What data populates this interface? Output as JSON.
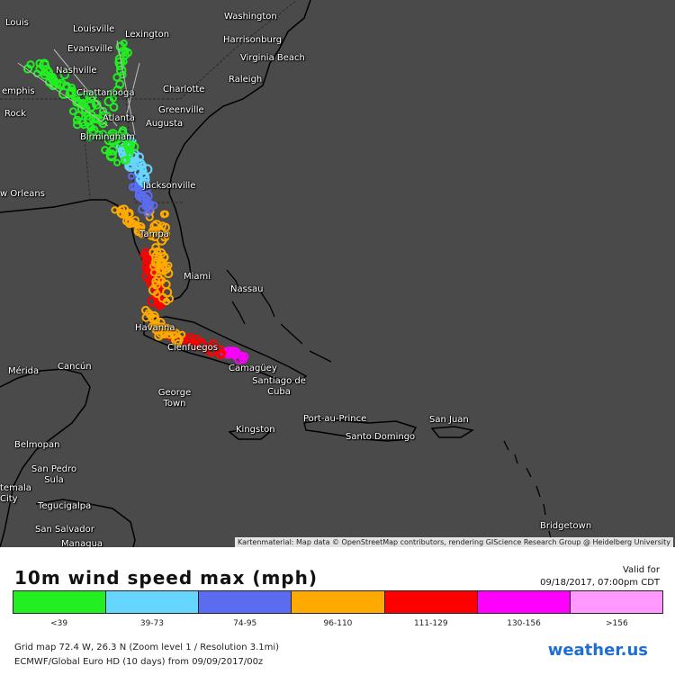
{
  "map": {
    "cities": [
      {
        "name": "Louis",
        "id": "louis"
      },
      {
        "name": "Louisville",
        "id": "louisville"
      },
      {
        "name": "Lexington",
        "id": "lexington"
      },
      {
        "name": "Washington",
        "id": "washington"
      },
      {
        "name": "Harrisonburg",
        "id": "harrisonburg"
      },
      {
        "name": "Evansville",
        "id": "evansville"
      },
      {
        "name": "Virginia Beach",
        "id": "virginia-beach"
      },
      {
        "name": "Nashville",
        "id": "nashville"
      },
      {
        "name": "Raleigh",
        "id": "raleigh"
      },
      {
        "name": "emphis",
        "id": "memphis"
      },
      {
        "name": "Chattanooga",
        "id": "chattanooga"
      },
      {
        "name": "Charlotte",
        "id": "charlotte"
      },
      {
        "name": "Rock",
        "id": "little-rock"
      },
      {
        "name": "Greenville",
        "id": "greenville"
      },
      {
        "name": "Atlanta",
        "id": "atlanta"
      },
      {
        "name": "Augusta",
        "id": "augusta"
      },
      {
        "name": "Birmingham",
        "id": "birmingham"
      },
      {
        "name": "Jacksonville",
        "id": "jacksonville"
      },
      {
        "name": "w Orleans",
        "id": "new-orleans"
      },
      {
        "name": "Tampa",
        "id": "tampa"
      },
      {
        "name": "Miami",
        "id": "miami"
      },
      {
        "name": "Nassau",
        "id": "nassau"
      },
      {
        "name": "Havanna",
        "id": "havana"
      },
      {
        "name": "Cienfuegos",
        "id": "cienfuegos"
      },
      {
        "name": "Camagüey",
        "id": "camaguey"
      },
      {
        "name": "Mérida",
        "id": "merida"
      },
      {
        "name": "Cancún",
        "id": "cancun"
      },
      {
        "name": "George Town",
        "id": "george-town"
      },
      {
        "name": "Santiago de Cuba",
        "id": "santiago-de-cuba"
      },
      {
        "name": "Port-au-Prince",
        "id": "port-au-prince"
      },
      {
        "name": "San Juan",
        "id": "san-juan"
      },
      {
        "name": "Kingston",
        "id": "kingston"
      },
      {
        "name": "Santo Domingo",
        "id": "santo-domingo"
      },
      {
        "name": "Belmopan",
        "id": "belmopan"
      },
      {
        "name": "San Pedro Sula",
        "id": "san-pedro-sula"
      },
      {
        "name": "temala City",
        "id": "guatemala-city"
      },
      {
        "name": "Tegucigalpa",
        "id": "tegucigalpa"
      },
      {
        "name": "San Salvador",
        "id": "san-salvador"
      },
      {
        "name": "Managua",
        "id": "managua"
      },
      {
        "name": "Bridgetown",
        "id": "bridgetown"
      }
    ],
    "attribution": "Kartenmaterial: Map data © OpenStreetMap contributors, rendering GIScience Research Group @ Heidelberg University"
  },
  "footer": {
    "title": "10m wind speed max (mph)",
    "valid_label": "Valid for",
    "valid_date": "09/18/2017, 07:00pm CDT",
    "legend": [
      {
        "label": "<39",
        "color": "#22ee22"
      },
      {
        "label": "39-73",
        "color": "#66d6ff"
      },
      {
        "label": "74-95",
        "color": "#5b6cf0"
      },
      {
        "label": "96-110",
        "color": "#ffaa00"
      },
      {
        "label": "111-129",
        "color": "#ff0000"
      },
      {
        "label": "130-156",
        "color": "#ff00ff"
      },
      {
        "label": ">156",
        "color": "#ff99ff"
      }
    ],
    "grid_info": "Grid map 72.4 W, 26.3 N (Zoom level 1 / Resolution 3.1mi)",
    "model_info": "ECMWF/Global Euro HD (10 days) from 09/09/2017/00z",
    "brand": "weather.us"
  }
}
